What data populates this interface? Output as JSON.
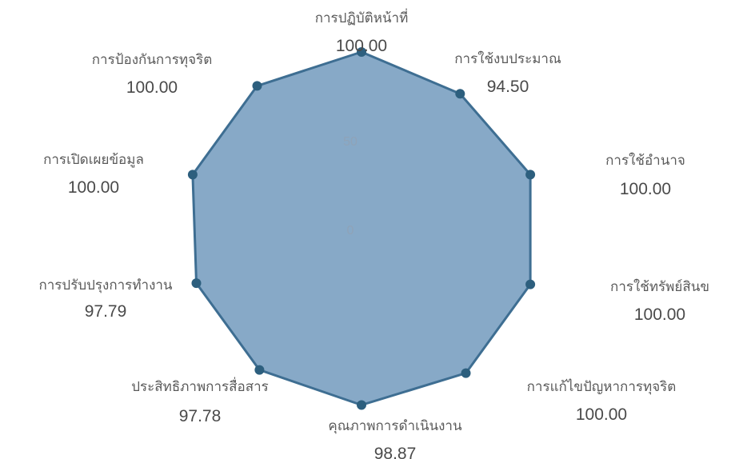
{
  "chart_data": {
    "type": "radar",
    "title": "",
    "scale": {
      "min": 0,
      "max": 100
    },
    "ticks": [
      "0",
      "50",
      "100"
    ],
    "colors": {
      "fill": "#7da2c2",
      "stroke": "#3e6e92",
      "point": "#2d5f7e"
    },
    "categories": [
      "การปฏิบัติหน้าที่",
      "การใช้งบประมาณ",
      "การใช้อำนาจ",
      "การใช้ทรัพย์สินข",
      "การแก้ไขปัญหาการทุจริต",
      "คุณภาพการดำเนินงาน",
      "ประสิทธิภาพการสื่อสาร",
      "การปรับปรุงการทำงาน",
      "การเปิดเผยข้อมูล",
      "การป้องกันการทุจริต"
    ],
    "series": [
      {
        "values": [
          100.0,
          94.5,
          100.0,
          100.0,
          100.0,
          98.87,
          97.78,
          97.79,
          100.0,
          100.0
        ],
        "value_labels": [
          "100.00",
          "94.50",
          "100.00",
          "100.00",
          "100.00",
          "98.87",
          "97.78",
          "97.79",
          "100.00",
          "100.00"
        ]
      }
    ]
  }
}
